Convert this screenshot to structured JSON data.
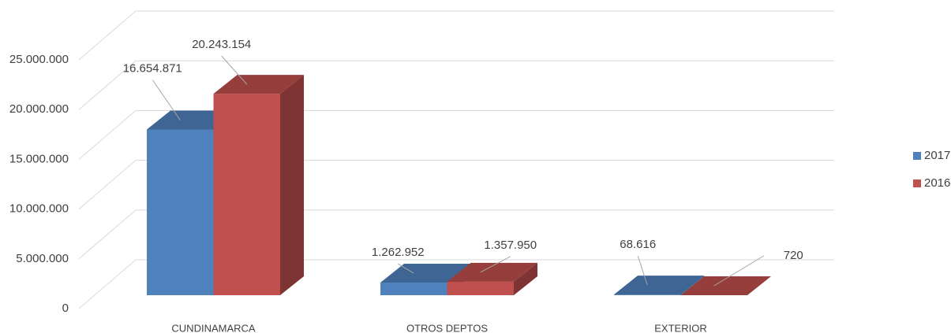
{
  "chart_data": {
    "type": "bar3d",
    "categories": [
      "CUNDINAMARCA",
      "OTROS DEPTOS",
      "EXTERIOR"
    ],
    "series": [
      {
        "name": "2017",
        "color": "#4f81bd",
        "values": [
          16654871,
          1262952,
          68616
        ],
        "value_labels": [
          "16.654.871",
          "1.262.952",
          "68.616"
        ]
      },
      {
        "name": "2016",
        "color": "#c0504d",
        "values": [
          20243154,
          1357950,
          720
        ],
        "value_labels": [
          "20.243.154",
          "1.357.950",
          "720"
        ]
      }
    ],
    "ylim": [
      0,
      25000000
    ],
    "yticks": [
      0,
      {
        "value": 5000000,
        "label": "5.000.000"
      },
      {
        "value": 10000000,
        "label": "10.000.000"
      },
      {
        "value": 15000000,
        "label": "15.000.000"
      },
      {
        "value": 20000000,
        "label": "20.000.000"
      },
      {
        "value": 25000000,
        "label": "25.000.000"
      }
    ],
    "grid": true,
    "legend": "right"
  }
}
